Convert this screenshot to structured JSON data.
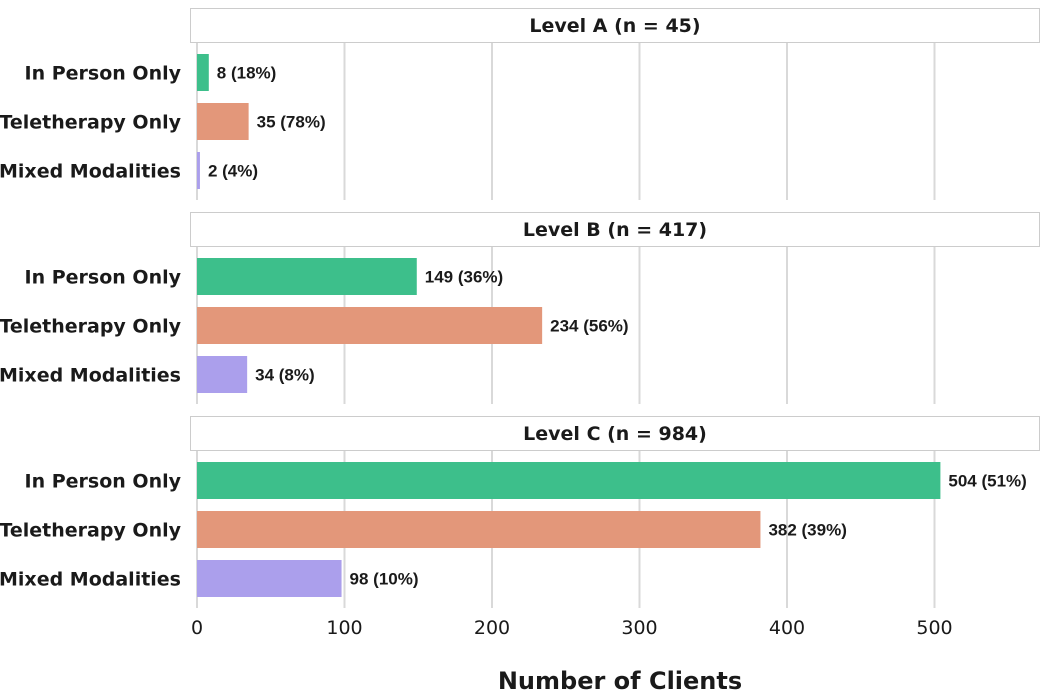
{
  "chart_data": {
    "type": "bar",
    "orientation": "horizontal",
    "xlabel": "Number of Clients",
    "xlim": [
      0,
      570
    ],
    "xticks": [
      0,
      100,
      200,
      300,
      400,
      500
    ],
    "grid": true,
    "categories": [
      "In Person Only",
      "Teletherapy Only",
      "Mixed Modalities"
    ],
    "colors": [
      "#3dbf8b",
      "#e3977a",
      "#ab9fec"
    ],
    "panels": [
      {
        "title": "Level A (n = 45)",
        "values": [
          8,
          35,
          2
        ],
        "labels": [
          "8 (18%)",
          "35 (78%)",
          "2 (4%)"
        ]
      },
      {
        "title": "Level B (n = 417)",
        "values": [
          149,
          234,
          34
        ],
        "labels": [
          "149 (36%)",
          "234 (56%)",
          "34 (8%)"
        ]
      },
      {
        "title": "Level C (n = 984)",
        "values": [
          504,
          382,
          98
        ],
        "labels": [
          "504 (51%)",
          "382 (39%)",
          "98 (10%)"
        ]
      }
    ]
  }
}
